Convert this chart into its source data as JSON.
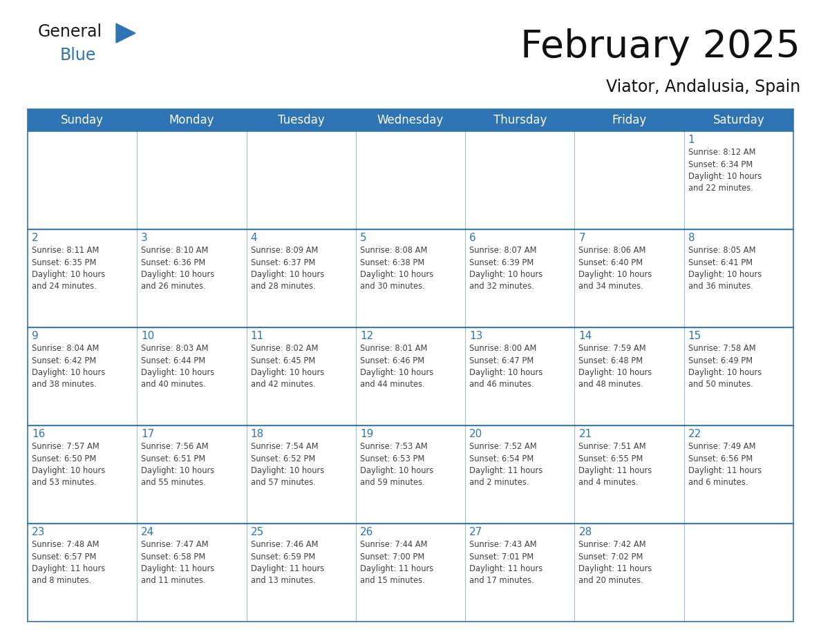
{
  "title": "February 2025",
  "subtitle": "Viator, Andalusia, Spain",
  "header_color": "#2E74B5",
  "header_text_color": "#FFFFFF",
  "cell_bg_color": "#FFFFFF",
  "border_color": "#2E74B5",
  "day_number_color": "#2E74B5",
  "cell_text_color": "#404040",
  "days_of_week": [
    "Sunday",
    "Monday",
    "Tuesday",
    "Wednesday",
    "Thursday",
    "Friday",
    "Saturday"
  ],
  "calendar_data": [
    [
      "",
      "",
      "",
      "",
      "",
      "",
      "1\nSunrise: 8:12 AM\nSunset: 6:34 PM\nDaylight: 10 hours\nand 22 minutes."
    ],
    [
      "2\nSunrise: 8:11 AM\nSunset: 6:35 PM\nDaylight: 10 hours\nand 24 minutes.",
      "3\nSunrise: 8:10 AM\nSunset: 6:36 PM\nDaylight: 10 hours\nand 26 minutes.",
      "4\nSunrise: 8:09 AM\nSunset: 6:37 PM\nDaylight: 10 hours\nand 28 minutes.",
      "5\nSunrise: 8:08 AM\nSunset: 6:38 PM\nDaylight: 10 hours\nand 30 minutes.",
      "6\nSunrise: 8:07 AM\nSunset: 6:39 PM\nDaylight: 10 hours\nand 32 minutes.",
      "7\nSunrise: 8:06 AM\nSunset: 6:40 PM\nDaylight: 10 hours\nand 34 minutes.",
      "8\nSunrise: 8:05 AM\nSunset: 6:41 PM\nDaylight: 10 hours\nand 36 minutes."
    ],
    [
      "9\nSunrise: 8:04 AM\nSunset: 6:42 PM\nDaylight: 10 hours\nand 38 minutes.",
      "10\nSunrise: 8:03 AM\nSunset: 6:44 PM\nDaylight: 10 hours\nand 40 minutes.",
      "11\nSunrise: 8:02 AM\nSunset: 6:45 PM\nDaylight: 10 hours\nand 42 minutes.",
      "12\nSunrise: 8:01 AM\nSunset: 6:46 PM\nDaylight: 10 hours\nand 44 minutes.",
      "13\nSunrise: 8:00 AM\nSunset: 6:47 PM\nDaylight: 10 hours\nand 46 minutes.",
      "14\nSunrise: 7:59 AM\nSunset: 6:48 PM\nDaylight: 10 hours\nand 48 minutes.",
      "15\nSunrise: 7:58 AM\nSunset: 6:49 PM\nDaylight: 10 hours\nand 50 minutes."
    ],
    [
      "16\nSunrise: 7:57 AM\nSunset: 6:50 PM\nDaylight: 10 hours\nand 53 minutes.",
      "17\nSunrise: 7:56 AM\nSunset: 6:51 PM\nDaylight: 10 hours\nand 55 minutes.",
      "18\nSunrise: 7:54 AM\nSunset: 6:52 PM\nDaylight: 10 hours\nand 57 minutes.",
      "19\nSunrise: 7:53 AM\nSunset: 6:53 PM\nDaylight: 10 hours\nand 59 minutes.",
      "20\nSunrise: 7:52 AM\nSunset: 6:54 PM\nDaylight: 11 hours\nand 2 minutes.",
      "21\nSunrise: 7:51 AM\nSunset: 6:55 PM\nDaylight: 11 hours\nand 4 minutes.",
      "22\nSunrise: 7:49 AM\nSunset: 6:56 PM\nDaylight: 11 hours\nand 6 minutes."
    ],
    [
      "23\nSunrise: 7:48 AM\nSunset: 6:57 PM\nDaylight: 11 hours\nand 8 minutes.",
      "24\nSunrise: 7:47 AM\nSunset: 6:58 PM\nDaylight: 11 hours\nand 11 minutes.",
      "25\nSunrise: 7:46 AM\nSunset: 6:59 PM\nDaylight: 11 hours\nand 13 minutes.",
      "26\nSunrise: 7:44 AM\nSunset: 7:00 PM\nDaylight: 11 hours\nand 15 minutes.",
      "27\nSunrise: 7:43 AM\nSunset: 7:01 PM\nDaylight: 11 hours\nand 17 minutes.",
      "28\nSunrise: 7:42 AM\nSunset: 7:02 PM\nDaylight: 11 hours\nand 20 minutes.",
      ""
    ]
  ],
  "logo_general_color": "#1a1a1a",
  "logo_blue_color": "#2E74B5",
  "figsize": [
    11.88,
    9.18
  ],
  "dpi": 100
}
